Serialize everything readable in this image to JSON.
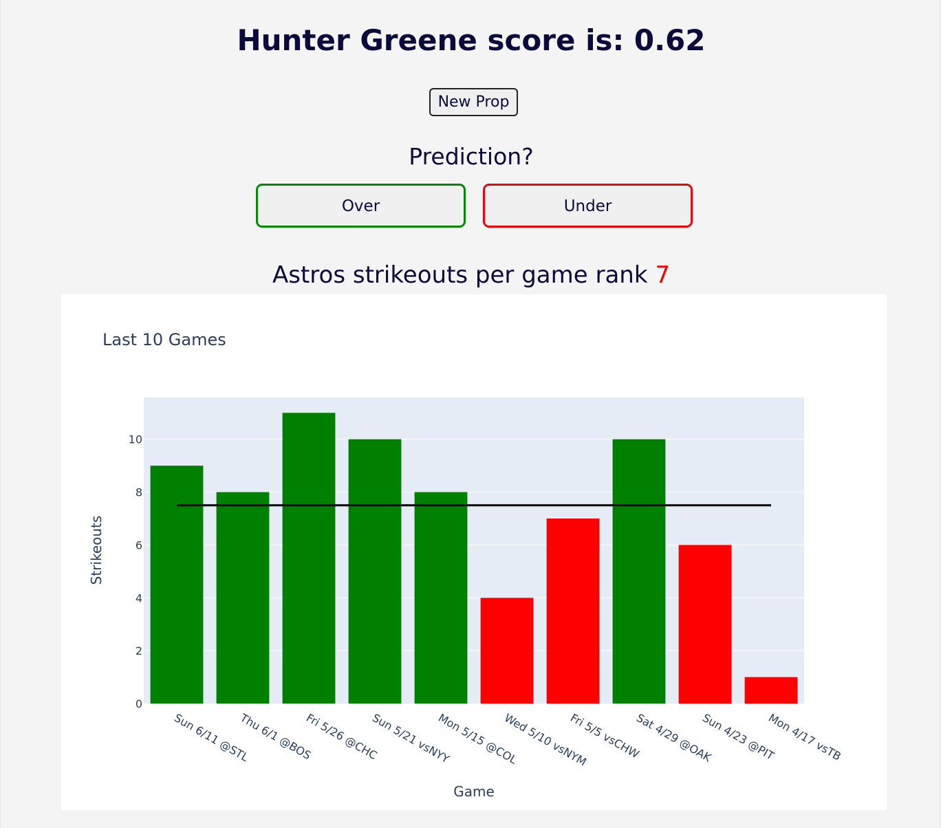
{
  "header": {
    "title": "Hunter Greene score is: 0.62",
    "new_prop_label": "New Prop"
  },
  "prediction": {
    "label": "Prediction?",
    "over_label": "Over",
    "under_label": "Under"
  },
  "rank": {
    "text": "Astros strikeouts per game rank ",
    "value": "7"
  },
  "colors": {
    "over": "#008000",
    "under": "#ff0000",
    "line": "#000000",
    "plot_bg": "#e5ecf6"
  },
  "chart_data": {
    "type": "bar",
    "title": "Last 10 Games",
    "xlabel": "Game",
    "ylabel": "Strikeouts",
    "categories": [
      "Sun 6/11 @STL",
      "Thu 6/1 @BOS",
      "Fri 5/26 @CHC",
      "Sun 5/21 vsNYY",
      "Mon 5/15 @COL",
      "Wed 5/10 vsNYM",
      "Fri 5/5 vsCHW",
      "Sat 4/29 @OAK",
      "Sun 4/23 @PIT",
      "Mon 4/17 vsTB"
    ],
    "values": [
      9,
      8,
      11,
      10,
      8,
      4,
      7,
      10,
      6,
      1
    ],
    "bar_colors": [
      "#008000",
      "#008000",
      "#008000",
      "#008000",
      "#008000",
      "#ff0000",
      "#ff0000",
      "#008000",
      "#ff0000",
      "#ff0000"
    ],
    "prop_line": 7.5,
    "ylim": [
      0,
      11.58
    ],
    "yticks": [
      0,
      2,
      4,
      6,
      8,
      10
    ],
    "grid": true,
    "legend": "none"
  }
}
